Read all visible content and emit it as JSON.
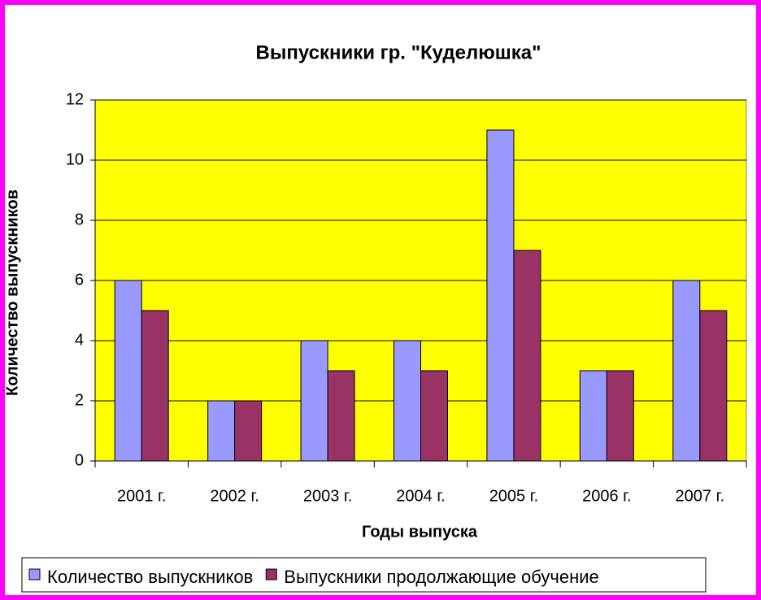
{
  "chart_data": {
    "type": "bar",
    "title": "Выпускники гр. \"Куделюшка\"",
    "x_label": "Годы выпуска",
    "y_label": "Количество выпускников",
    "categories": [
      "2001 г.",
      "2002 г.",
      "2003 г.",
      "2004 г.",
      "2005 г.",
      "2006 г.",
      "2007 г."
    ],
    "series": [
      {
        "name": "Количество выпускников",
        "color": "#9999ff",
        "values": [
          6,
          2,
          4,
          4,
          11,
          3,
          6
        ]
      },
      {
        "name": "Выпускники продолжающие обучение",
        "color": "#993366",
        "values": [
          5,
          2,
          3,
          3,
          7,
          3,
          5
        ]
      }
    ],
    "ylim": [
      0,
      12
    ],
    "yticks": [
      0,
      2,
      4,
      6,
      8,
      10,
      12
    ],
    "grid": true,
    "plot_background": "#ffff00",
    "legend": "bottom"
  }
}
